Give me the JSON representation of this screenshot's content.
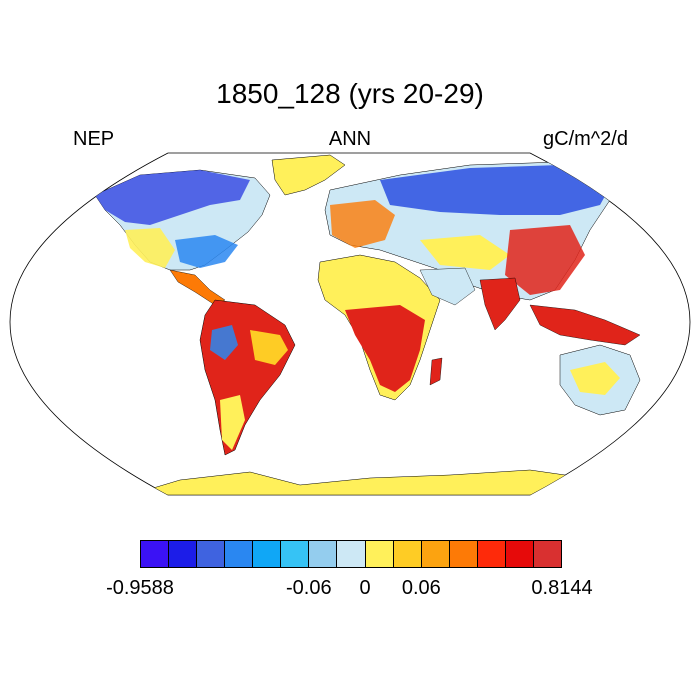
{
  "title": "1850_128 (yrs 20-29)",
  "left_label": "NEP",
  "center_label": "ANN",
  "right_label": "gC/m^2/d",
  "colorbar": {
    "colors": [
      "#3b12f5",
      "#1c1de8",
      "#3f63e0",
      "#2a87f1",
      "#10a7f6",
      "#36c3f5",
      "#94cdee",
      "#cde8f5",
      "#fff05a",
      "#fecc25",
      "#fca310",
      "#fd7a06",
      "#fe2a0a",
      "#e60a0a",
      "#d93030"
    ],
    "labels": [
      "-0.9588",
      "-0.06",
      "0",
      "0.06",
      "0.8144"
    ]
  },
  "palette": {
    "land_background": "#cde8f5",
    "desert": "#fff05a",
    "tropics": "#e0241a",
    "boreal": "#2a4fe0",
    "ocean": "#ffffff"
  }
}
